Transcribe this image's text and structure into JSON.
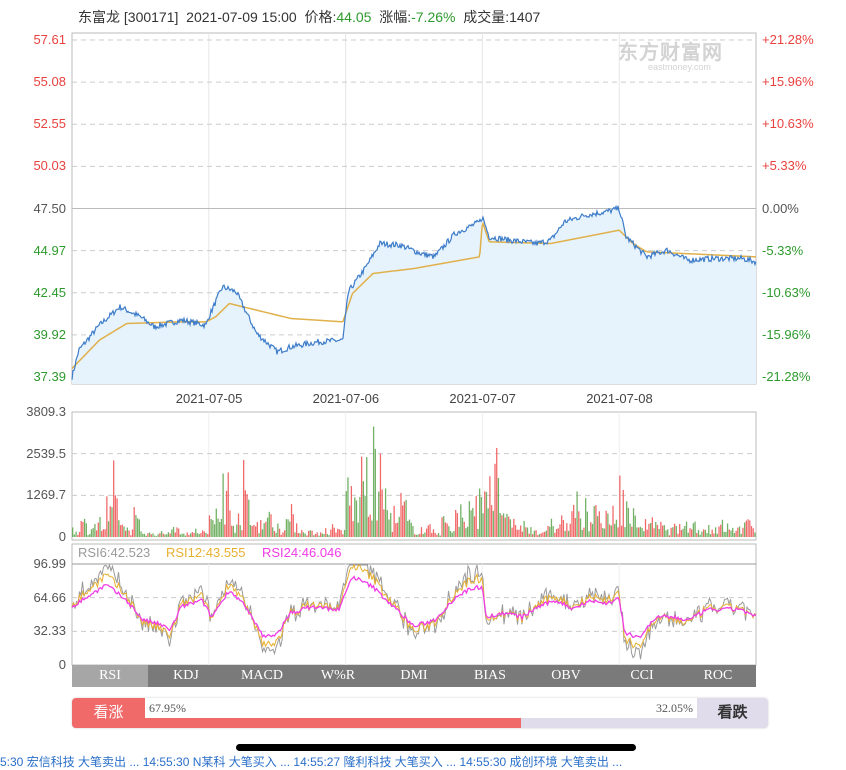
{
  "header": {
    "name": "东富龙",
    "code": "[300171]",
    "datetime": "2021-07-09 15:00",
    "price_label": "价格:",
    "price": "44.05",
    "change_label": "涨幅:",
    "change": "-7.26%",
    "volume_label": "成交量:",
    "volume": "1407"
  },
  "watermark": {
    "cn": "东方财富网",
    "en": "eastmoney.com"
  },
  "colors": {
    "up": "#e8423f",
    "down": "#2e9a2e",
    "price_line": "#3d7cc9",
    "avg_line": "#e0b04a",
    "area_fill": "#e6f3fc",
    "rsi6": "#9a9a9a",
    "rsi12": "#e8b030",
    "rsi24": "#f03ce6"
  },
  "chart_data": [
    {
      "type": "line",
      "title": "",
      "y_left_ticks": [
        "57.61",
        "55.08",
        "52.55",
        "50.03",
        "47.50",
        "44.97",
        "42.45",
        "39.92",
        "37.39"
      ],
      "y_right_ticks": [
        "+21.28%",
        "+15.96%",
        "+10.63%",
        "+5.33%",
        "0.00%",
        "-5.33%",
        "-10.63%",
        "-15.96%",
        "-21.28%"
      ],
      "ylim": [
        37.39,
        57.61
      ],
      "prev_close": 47.5,
      "x_ticks": [
        "2021-07-05",
        "2021-07-06",
        "2021-07-07",
        "2021-07-08"
      ],
      "x_unit": "trading days (0-5)",
      "series": [
        {
          "key": "price",
          "points": [
            [
              0,
              37.4
            ],
            [
              0.05,
              39.0
            ],
            [
              0.2,
              40.5
            ],
            [
              0.35,
              41.6
            ],
            [
              0.5,
              41.0
            ],
            [
              0.6,
              40.4
            ],
            [
              0.8,
              40.8
            ],
            [
              0.98,
              40.5
            ],
            [
              1.0,
              41.0
            ],
            [
              1.1,
              42.8
            ],
            [
              1.2,
              42.5
            ],
            [
              1.35,
              40.0
            ],
            [
              1.5,
              38.9
            ],
            [
              1.6,
              39.2
            ],
            [
              1.8,
              39.5
            ],
            [
              1.98,
              39.6
            ],
            [
              2.02,
              42.5
            ],
            [
              2.15,
              44.0
            ],
            [
              2.25,
              45.4
            ],
            [
              2.4,
              45.3
            ],
            [
              2.55,
              44.8
            ],
            [
              2.65,
              44.6
            ],
            [
              2.8,
              46.0
            ],
            [
              2.98,
              46.7
            ],
            [
              3.0,
              47.0
            ],
            [
              3.05,
              45.8
            ],
            [
              3.2,
              45.6
            ],
            [
              3.4,
              45.4
            ],
            [
              3.5,
              45.6
            ],
            [
              3.6,
              46.7
            ],
            [
              3.75,
              47.1
            ],
            [
              3.9,
              47.3
            ],
            [
              4.0,
              47.5
            ],
            [
              4.05,
              45.8
            ],
            [
              4.2,
              44.6
            ],
            [
              4.35,
              45.0
            ],
            [
              4.5,
              44.4
            ],
            [
              4.7,
              44.5
            ],
            [
              4.9,
              44.5
            ],
            [
              5.0,
              44.3
            ]
          ]
        },
        {
          "key": "average",
          "points": [
            [
              0,
              37.9
            ],
            [
              0.2,
              39.6
            ],
            [
              0.4,
              40.6
            ],
            [
              0.8,
              40.7
            ],
            [
              0.98,
              40.7
            ],
            [
              1.05,
              41.0
            ],
            [
              1.15,
              41.8
            ],
            [
              1.4,
              41.3
            ],
            [
              1.6,
              40.9
            ],
            [
              1.98,
              40.7
            ],
            [
              2.05,
              42.4
            ],
            [
              2.2,
              43.6
            ],
            [
              2.5,
              43.9
            ],
            [
              2.98,
              44.6
            ],
            [
              3.0,
              46.7
            ],
            [
              3.05,
              45.5
            ],
            [
              3.5,
              45.4
            ],
            [
              4.0,
              46.2
            ],
            [
              4.1,
              45.4
            ],
            [
              4.2,
              44.9
            ],
            [
              5.0,
              44.6
            ]
          ]
        }
      ]
    },
    {
      "type": "bar",
      "title": "",
      "y_ticks": [
        "3809.3",
        "2539.5",
        "1269.7",
        "0"
      ],
      "ylim": [
        0,
        3809.3
      ],
      "values": [
        300,
        800,
        500,
        700,
        600,
        1200,
        2100,
        600,
        400,
        900,
        300,
        200,
        150,
        250,
        400,
        500,
        300,
        200,
        300,
        250,
        800,
        1200,
        2800,
        900,
        1400,
        2100,
        700,
        900,
        1100,
        700,
        500,
        1000,
        900,
        400,
        300,
        250,
        200,
        300,
        400,
        350,
        2600,
        1800,
        3100,
        2200,
        3400,
        2400,
        1200,
        900,
        1600,
        700,
        400,
        350,
        500,
        300,
        900,
        400,
        1500,
        800,
        1200,
        2000,
        3300,
        3100,
        2500,
        900,
        700,
        600,
        500,
        400,
        300,
        450,
        500,
        1000,
        600,
        1800,
        800,
        1100,
        2300,
        700,
        900,
        1000,
        2500,
        1200,
        900,
        700,
        800,
        600,
        500,
        400,
        500,
        600,
        700,
        500,
        400,
        450,
        500,
        600,
        400,
        500,
        700,
        600
      ]
    },
    {
      "type": "line",
      "title": "",
      "y_ticks": [
        "96.99",
        "64.66",
        "32.33",
        "0"
      ],
      "ylim": [
        0,
        96.99
      ],
      "legend": [
        {
          "name": "RSI6:42.523"
        },
        {
          "name": "RSI12:43.555"
        },
        {
          "name": "RSI24:46.046"
        }
      ],
      "rsi24_points": [
        [
          0,
          56
        ],
        [
          0.25,
          77
        ],
        [
          0.4,
          62
        ],
        [
          0.52,
          43
        ],
        [
          0.62,
          40
        ],
        [
          0.72,
          34
        ],
        [
          0.8,
          56
        ],
        [
          0.95,
          62
        ],
        [
          1.02,
          46
        ],
        [
          1.15,
          72
        ],
        [
          1.25,
          59
        ],
        [
          1.4,
          27
        ],
        [
          1.5,
          30
        ],
        [
          1.6,
          50
        ],
        [
          1.75,
          56
        ],
        [
          1.95,
          53
        ],
        [
          2.05,
          85
        ],
        [
          2.2,
          75
        ],
        [
          2.35,
          56
        ],
        [
          2.5,
          37
        ],
        [
          2.65,
          43
        ],
        [
          2.81,
          66
        ],
        [
          2.93,
          74
        ],
        [
          3.0,
          75
        ],
        [
          3.03,
          46
        ],
        [
          3.17,
          50
        ],
        [
          3.29,
          46
        ],
        [
          3.41,
          56
        ],
        [
          3.54,
          62
        ],
        [
          3.66,
          54
        ],
        [
          3.78,
          62
        ],
        [
          3.9,
          59
        ],
        [
          4.0,
          64
        ],
        [
          4.04,
          30
        ],
        [
          4.15,
          27
        ],
        [
          4.27,
          46
        ],
        [
          4.39,
          46
        ],
        [
          4.51,
          43
        ],
        [
          4.64,
          53
        ],
        [
          4.75,
          53
        ],
        [
          4.88,
          54
        ],
        [
          5.0,
          46
        ]
      ]
    }
  ],
  "tabs": [
    "RSI",
    "KDJ",
    "MACD",
    "W%R",
    "DMI",
    "BIAS",
    "OBV",
    "CCI",
    "ROC"
  ],
  "active_tab": "RSI",
  "sentiment": {
    "bull_label": "看涨",
    "bull_pct": "67.95%",
    "bull_value": 67.95,
    "bear_label": "看跌",
    "bear_pct": "32.05%"
  },
  "ticker": "5:30  宏信科技  大笔卖出  ...  14:55:30  N某科  大笔买入  ...  14:55:27  隆利科技  大笔买入  ...  14:55:30  成创环境  大笔卖出  ..."
}
